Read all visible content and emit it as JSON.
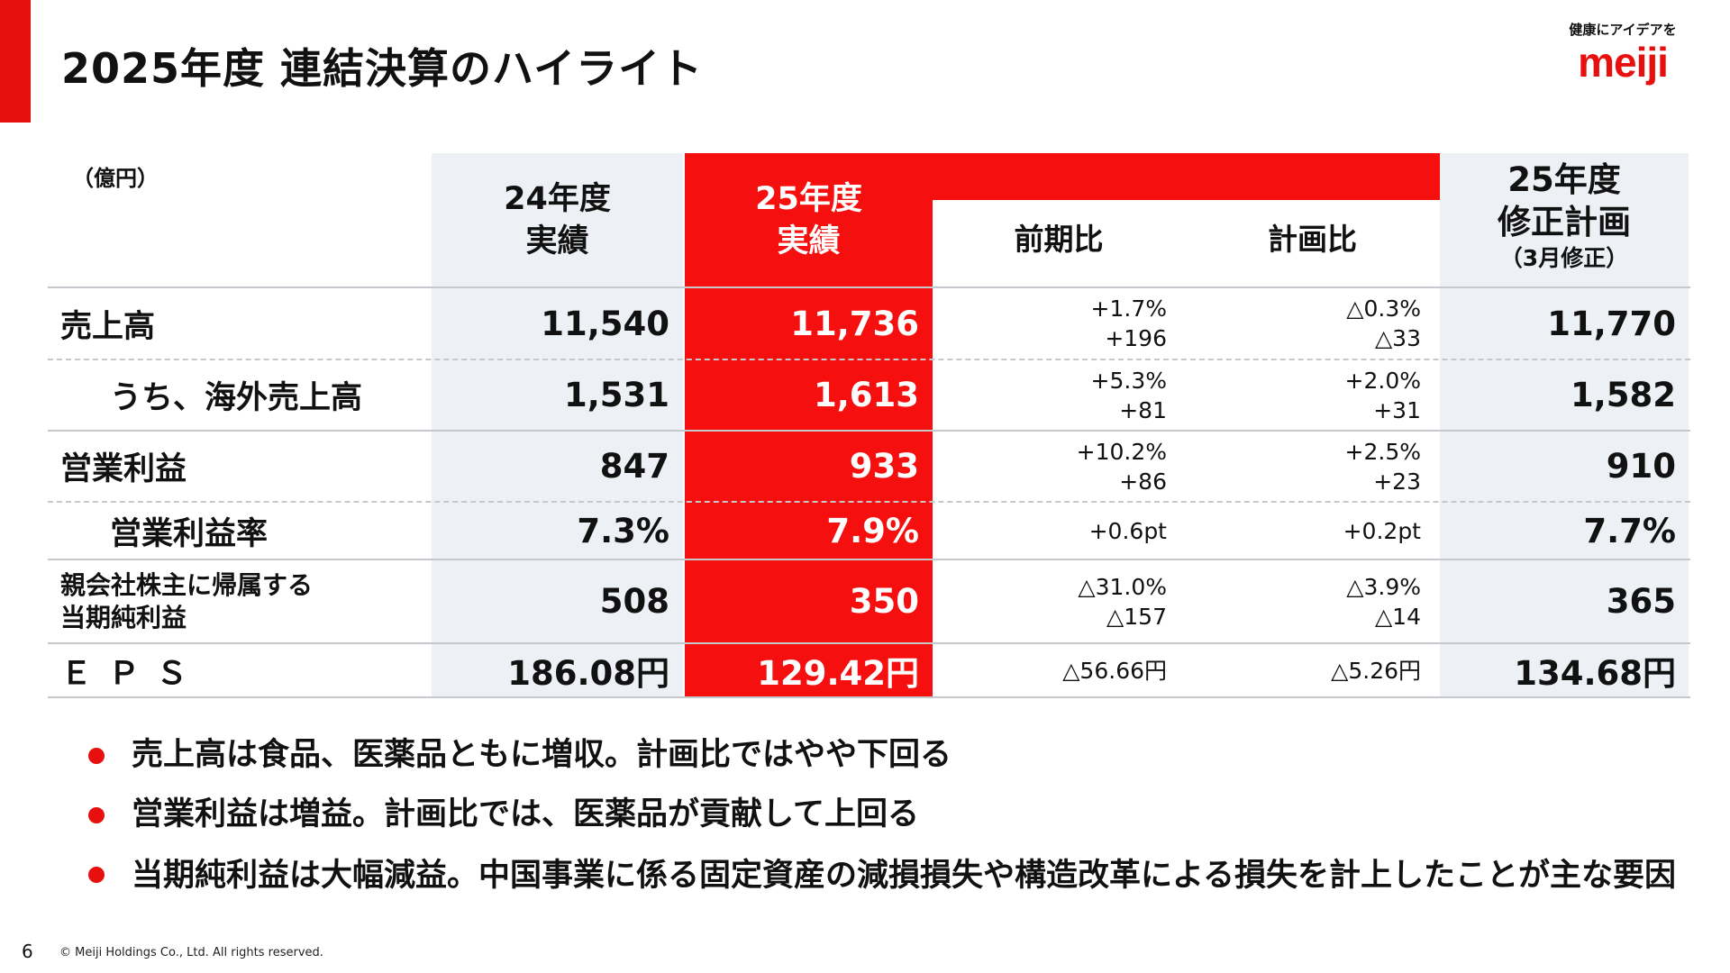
{
  "header": {
    "title": "2025年度 連結決算のハイライト",
    "logo_tagline": "健康にアイデアを",
    "logo_wordmark": "meiji"
  },
  "table": {
    "unit": "（億円）",
    "columns": {
      "prev_year": [
        "24年度",
        "実績"
      ],
      "this_year": [
        "25年度",
        "実績"
      ],
      "yoy": "前期比",
      "vs_plan": "計画比",
      "plan": [
        "25年度",
        "修正計画"
      ],
      "plan_note": "（3月修正）"
    },
    "rows": [
      {
        "label": "売上高",
        "prev": "11,540",
        "curr": "11,736",
        "yoy": [
          "+1.7%",
          "+196"
        ],
        "vs_plan": [
          "△0.3%",
          "△33"
        ],
        "plan": "11,770"
      },
      {
        "label": "うち、海外売上高",
        "prev": "1,531",
        "curr": "1,613",
        "yoy": [
          "+5.3%",
          "+81"
        ],
        "vs_plan": [
          "+2.0%",
          "+31"
        ],
        "plan": "1,582"
      },
      {
        "label": "営業利益",
        "prev": "847",
        "curr": "933",
        "yoy": [
          "+10.2%",
          "+86"
        ],
        "vs_plan": [
          "+2.5%",
          "+23"
        ],
        "plan": "910"
      },
      {
        "label": "営業利益率",
        "prev": "7.3%",
        "curr": "7.9%",
        "yoy": [
          "+0.6pt"
        ],
        "vs_plan": [
          "+0.2pt"
        ],
        "plan": "7.7%"
      },
      {
        "label": [
          "親会社株主に帰属する",
          "当期純利益"
        ],
        "prev": "508",
        "curr": "350",
        "yoy": [
          "△31.0%",
          "△157"
        ],
        "vs_plan": [
          "△3.9%",
          "△14"
        ],
        "plan": "365"
      },
      {
        "label": "ＥＰＳ",
        "prev": "186.08円",
        "curr": "129.42円",
        "yoy": [
          "△56.66円"
        ],
        "vs_plan": [
          "△5.26円"
        ],
        "plan": "134.68円"
      }
    ]
  },
  "bullets": [
    "売上高は食品、医薬品ともに増収。計画比ではやや下回る",
    "営業利益は増益。計画比では、医薬品が貢献して上回る",
    "当期純利益は大幅減益。中国事業に係る固定資産の減損損失や構造改革による損失を計上したことが主な要因"
  ],
  "footer": {
    "page_number": "6",
    "copyright": "© Meiji Holdings Co., Ltd. All rights reserved."
  },
  "colors": {
    "accent": "#e8100f",
    "highlight_column": "#f50f0e",
    "shaded_column": "#edf0f4"
  }
}
